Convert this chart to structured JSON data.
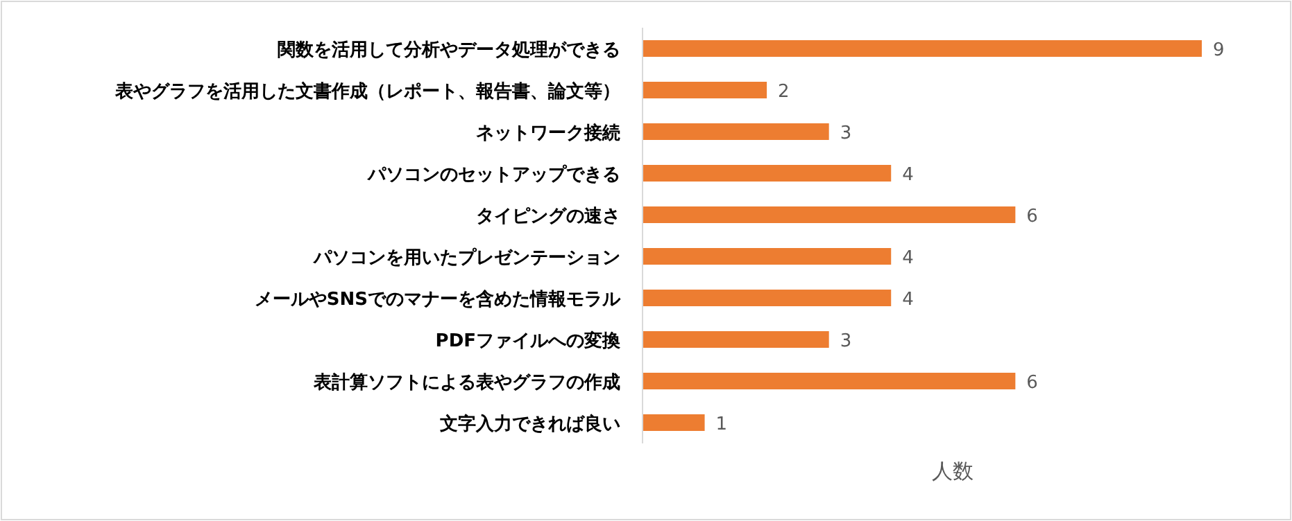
{
  "chart_data": {
    "type": "bar",
    "orientation": "horizontal",
    "xlabel": "人数",
    "categories": [
      "関数を活用して分析やデータ処理ができる",
      "表やグラフを活用した文書作成（レポート、報告書、論文等）",
      "ネットワーク接続",
      "パソコンのセットアップできる",
      "タイピングの速さ",
      "パソコンを用いたプレゼンテーション",
      "メールやSNSでのマナーを含めた情報モラル",
      "PDFファイルへの変換",
      "表計算ソフトによる表やグラフの作成",
      "文字入力できれば良い"
    ],
    "values": [
      9,
      2,
      3,
      4,
      6,
      4,
      4,
      3,
      6,
      1
    ],
    "color": "#ed7d31",
    "data_labels": true
  }
}
